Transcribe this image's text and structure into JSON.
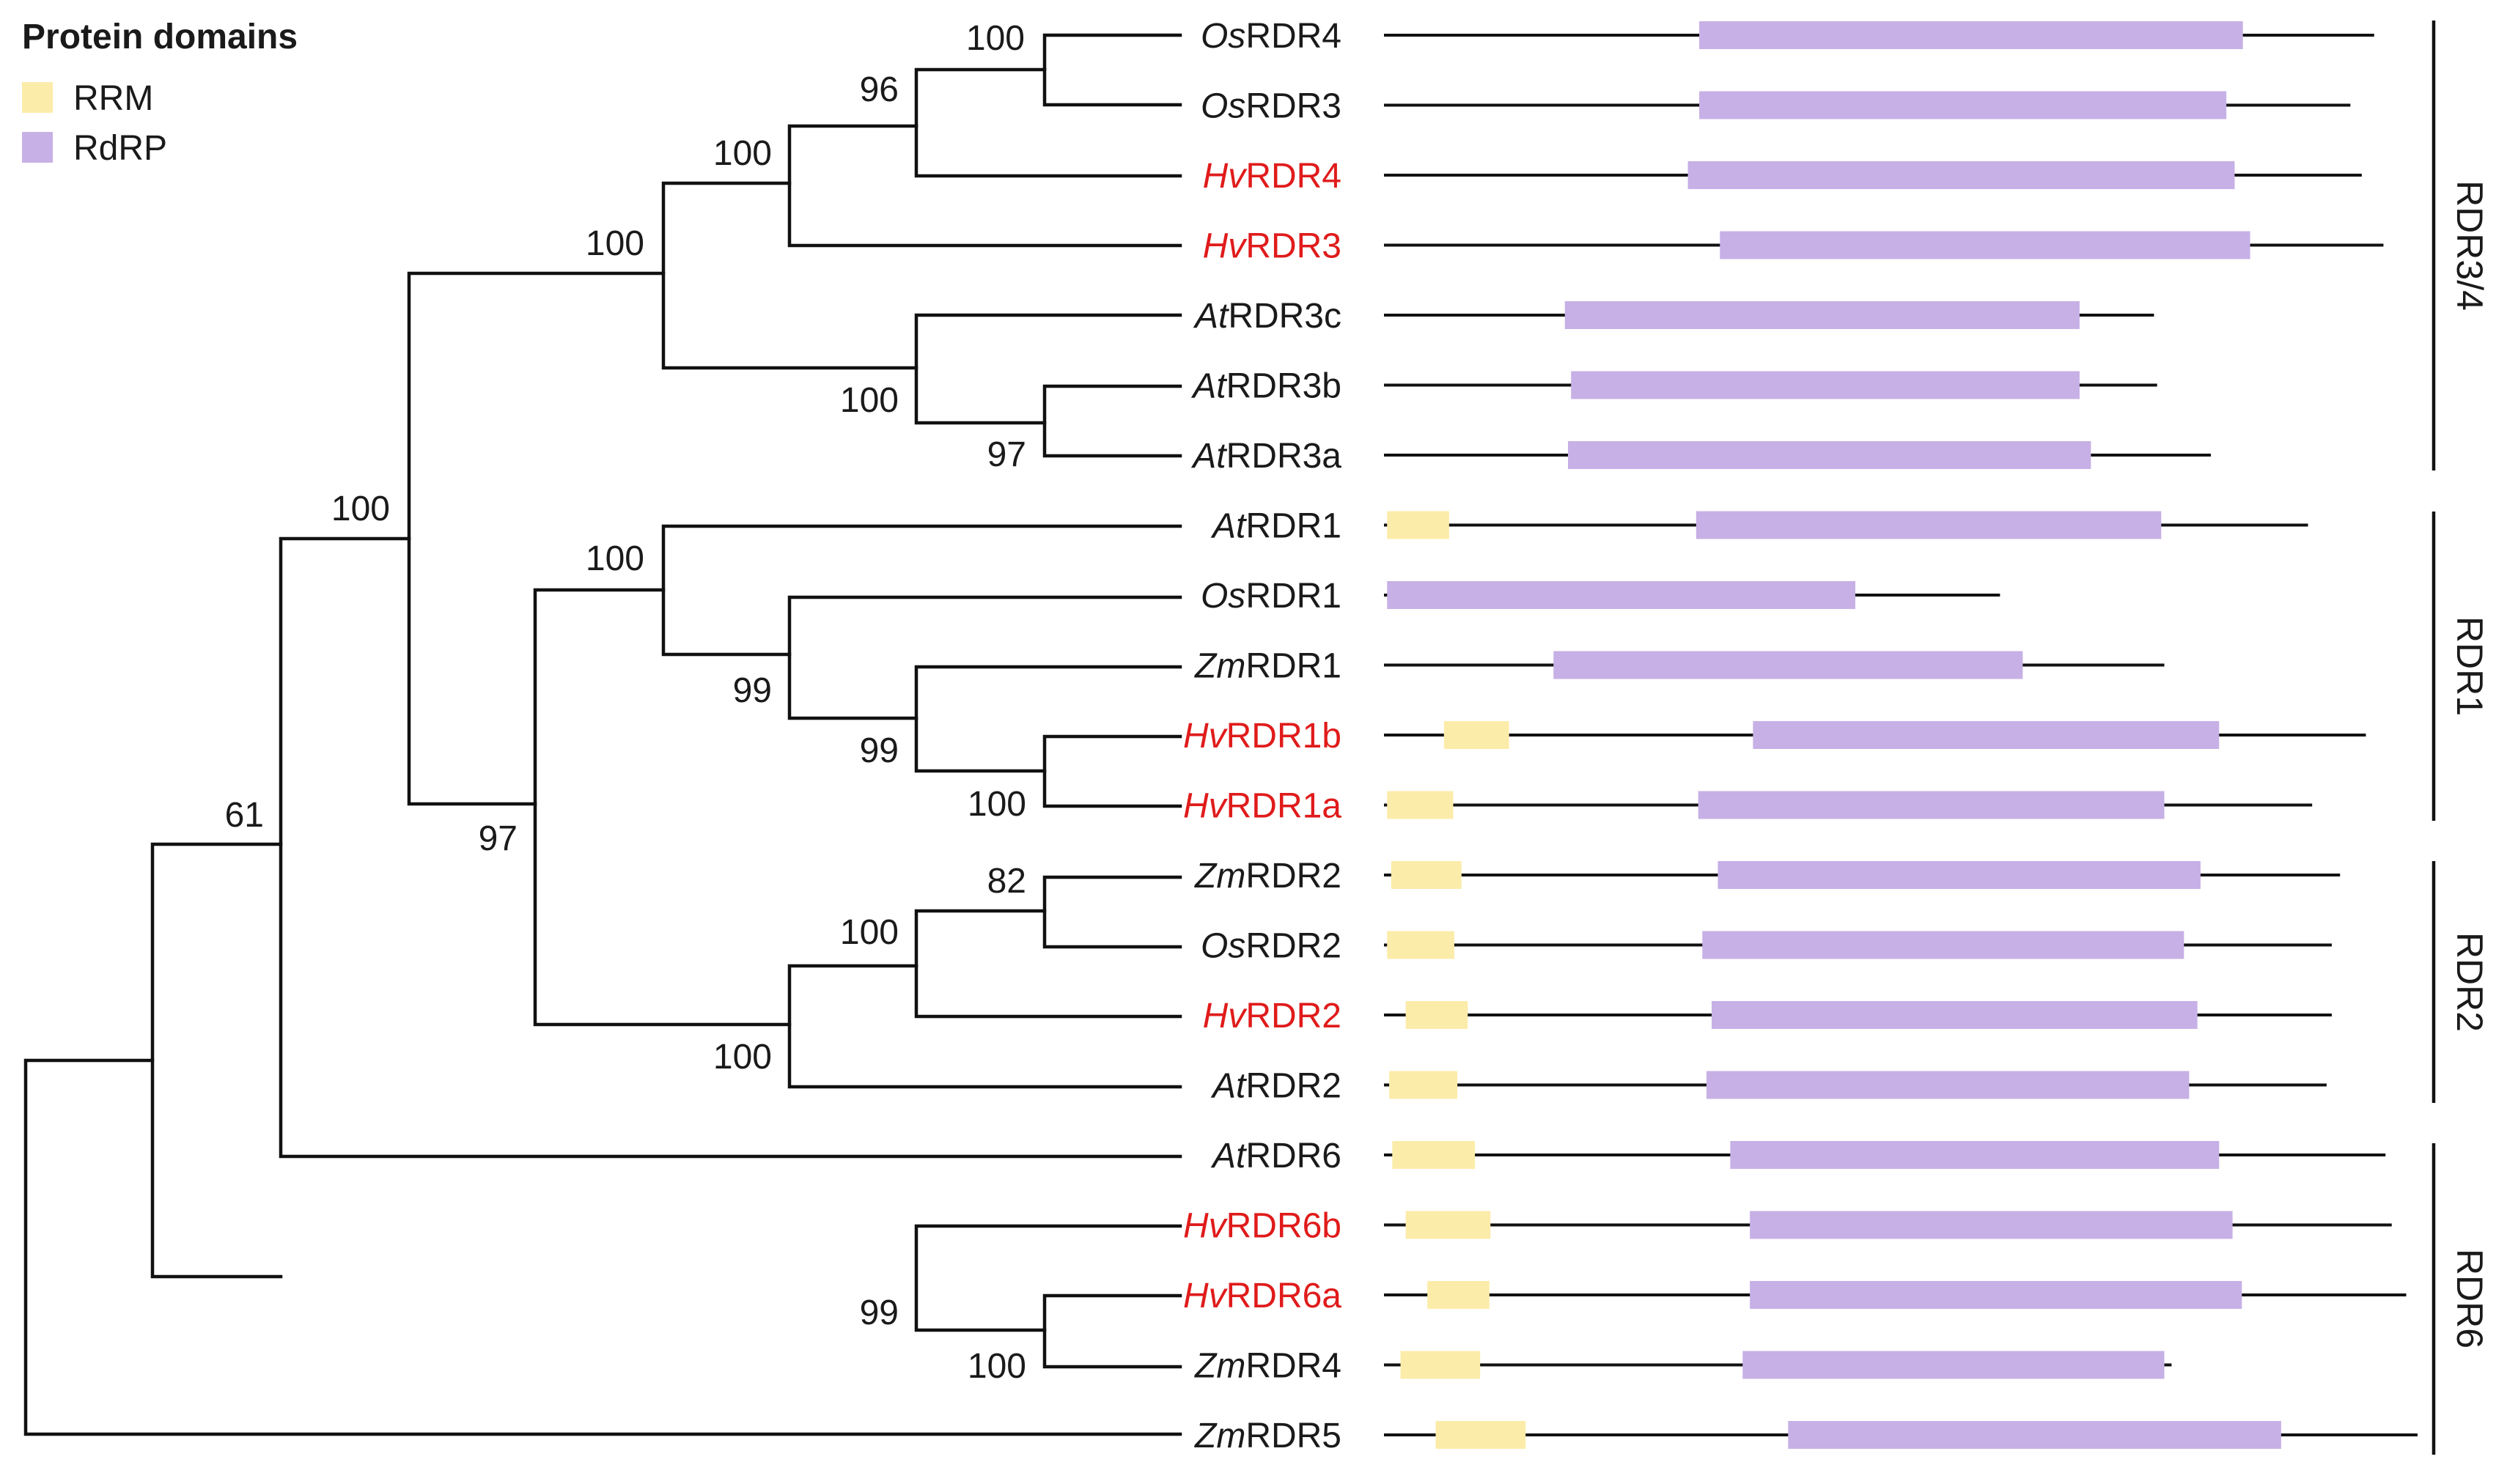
{
  "legend": {
    "title": "Protein domains",
    "items": [
      {
        "label": "RRM",
        "color": "#fcecaa"
      },
      {
        "label": "RdRP",
        "color": "#c7b0e6"
      }
    ]
  },
  "colors": {
    "highlight": "#e01b1b",
    "normal": "#1a1a1a",
    "RRM": "#fcecaa",
    "RdRP": "#c7b0e6"
  },
  "taxa": [
    {
      "prefix": "Os",
      "name": "RDR4",
      "highlight": false,
      "length": 0.958,
      "domains": [
        {
          "type": "RdRP",
          "start": 0.305,
          "end": 0.831
        }
      ]
    },
    {
      "prefix": "Os",
      "name": "RDR3",
      "highlight": false,
      "length": 0.935,
      "domains": [
        {
          "type": "RdRP",
          "start": 0.305,
          "end": 0.815
        }
      ]
    },
    {
      "prefix": "Hv",
      "name": "RDR4",
      "highlight": true,
      "length": 0.946,
      "domains": [
        {
          "type": "RdRP",
          "start": 0.294,
          "end": 0.823
        }
      ]
    },
    {
      "prefix": "Hv",
      "name": "RDR3",
      "highlight": true,
      "length": 0.967,
      "domains": [
        {
          "type": "RdRP",
          "start": 0.325,
          "end": 0.838
        }
      ]
    },
    {
      "prefix": "At",
      "name": "RDR3c",
      "highlight": false,
      "length": 0.745,
      "domains": [
        {
          "type": "RdRP",
          "start": 0.175,
          "end": 0.673
        }
      ]
    },
    {
      "prefix": "At",
      "name": "RDR3b",
      "highlight": false,
      "length": 0.748,
      "domains": [
        {
          "type": "RdRP",
          "start": 0.181,
          "end": 0.673
        }
      ]
    },
    {
      "prefix": "At",
      "name": "RDR3a",
      "highlight": false,
      "length": 0.8,
      "domains": [
        {
          "type": "RdRP",
          "start": 0.178,
          "end": 0.684
        }
      ]
    },
    {
      "prefix": "At",
      "name": "RDR1",
      "highlight": false,
      "length": 0.894,
      "domains": [
        {
          "type": "RRM",
          "start": 0.003,
          "end": 0.063
        },
        {
          "type": "RdRP",
          "start": 0.302,
          "end": 0.752
        }
      ]
    },
    {
      "prefix": "Os",
      "name": "RDR1",
      "highlight": false,
      "length": 0.596,
      "domains": [
        {
          "type": "RdRP",
          "start": 0.003,
          "end": 0.456
        }
      ]
    },
    {
      "prefix": "Zm",
      "name": "RDR1",
      "highlight": false,
      "length": 0.755,
      "domains": [
        {
          "type": "RdRP",
          "start": 0.164,
          "end": 0.618
        }
      ]
    },
    {
      "prefix": "Hv",
      "name": "RDR1b",
      "highlight": true,
      "length": 0.95,
      "domains": [
        {
          "type": "RRM",
          "start": 0.058,
          "end": 0.121
        },
        {
          "type": "RdRP",
          "start": 0.357,
          "end": 0.808
        }
      ]
    },
    {
      "prefix": "Hv",
      "name": "RDR1a",
      "highlight": true,
      "length": 0.898,
      "domains": [
        {
          "type": "RRM",
          "start": 0.003,
          "end": 0.067
        },
        {
          "type": "RdRP",
          "start": 0.304,
          "end": 0.755
        }
      ]
    },
    {
      "prefix": "Zm",
      "name": "RDR2",
      "highlight": false,
      "length": 0.925,
      "domains": [
        {
          "type": "RRM",
          "start": 0.007,
          "end": 0.075
        },
        {
          "type": "RdRP",
          "start": 0.323,
          "end": 0.79
        }
      ]
    },
    {
      "prefix": "Os",
      "name": "RDR2",
      "highlight": false,
      "length": 0.917,
      "domains": [
        {
          "type": "RRM",
          "start": 0.003,
          "end": 0.068
        },
        {
          "type": "RdRP",
          "start": 0.308,
          "end": 0.774
        }
      ]
    },
    {
      "prefix": "Hv",
      "name": "RDR2",
      "highlight": true,
      "length": 0.917,
      "domains": [
        {
          "type": "RRM",
          "start": 0.021,
          "end": 0.081
        },
        {
          "type": "RdRP",
          "start": 0.317,
          "end": 0.787
        }
      ]
    },
    {
      "prefix": "At",
      "name": "RDR2",
      "highlight": false,
      "length": 0.912,
      "domains": [
        {
          "type": "RRM",
          "start": 0.005,
          "end": 0.071
        },
        {
          "type": "RdRP",
          "start": 0.312,
          "end": 0.779
        }
      ]
    },
    {
      "prefix": "At",
      "name": "RDR6",
      "highlight": false,
      "length": 0.969,
      "domains": [
        {
          "type": "RRM",
          "start": 0.008,
          "end": 0.088
        },
        {
          "type": "RdRP",
          "start": 0.335,
          "end": 0.808
        }
      ]
    },
    {
      "prefix": "Hv",
      "name": "RDR6b",
      "highlight": true,
      "length": 0.975,
      "domains": [
        {
          "type": "RRM",
          "start": 0.021,
          "end": 0.103
        },
        {
          "type": "RdRP",
          "start": 0.354,
          "end": 0.821
        }
      ]
    },
    {
      "prefix": "Hv",
      "name": "RDR6a",
      "highlight": true,
      "length": 0.989,
      "domains": [
        {
          "type": "RRM",
          "start": 0.042,
          "end": 0.102
        },
        {
          "type": "RdRP",
          "start": 0.354,
          "end": 0.83
        }
      ]
    },
    {
      "prefix": "Zm",
      "name": "RDR4",
      "highlight": false,
      "length": 0.762,
      "domains": [
        {
          "type": "RRM",
          "start": 0.016,
          "end": 0.093
        },
        {
          "type": "RdRP",
          "start": 0.347,
          "end": 0.755
        }
      ]
    },
    {
      "prefix": "Zm",
      "name": "RDR5",
      "highlight": false,
      "length": 1.0,
      "domains": [
        {
          "type": "RRM",
          "start": 0.05,
          "end": 0.137
        },
        {
          "type": "RdRP",
          "start": 0.391,
          "end": 0.868
        }
      ]
    }
  ],
  "bootstrap": [
    {
      "value": "100",
      "node": "OsRDR4-OsRDR3"
    },
    {
      "value": "96",
      "node": "Os-HvRDR4"
    },
    {
      "value": "100",
      "node": "RDR4-clade"
    },
    {
      "value": "100",
      "node": "RDR3/4-clade"
    },
    {
      "value": "100",
      "node": "AtRDR3-clade"
    },
    {
      "value": "97",
      "node": "AtRDR3b-AtRDR3a"
    },
    {
      "value": "100",
      "node": "RDR3/4-RDR1/2"
    },
    {
      "value": "100",
      "node": "RDR1-clade"
    },
    {
      "value": "99",
      "node": "monocot-RDR1"
    },
    {
      "value": "99",
      "node": "ZmRDR1-HvRDR1"
    },
    {
      "value": "100",
      "node": "HvRDR1b-HvRDR1a"
    },
    {
      "value": "97",
      "node": "RDR1-RDR2"
    },
    {
      "value": "82",
      "node": "ZmRDR2-OsRDR2"
    },
    {
      "value": "100",
      "node": "monocot-RDR2"
    },
    {
      "value": "100",
      "node": "RDR2-clade"
    },
    {
      "value": "61",
      "node": "RDR6-outer"
    },
    {
      "value": "99",
      "node": "monocot-RDR6"
    },
    {
      "value": "100",
      "node": "HvRDR6a-ZmRDR4"
    }
  ],
  "groups": [
    {
      "label": "RDR3/4"
    },
    {
      "label": "RDR1"
    },
    {
      "label": "RDR2"
    },
    {
      "label": "RDR6"
    }
  ]
}
